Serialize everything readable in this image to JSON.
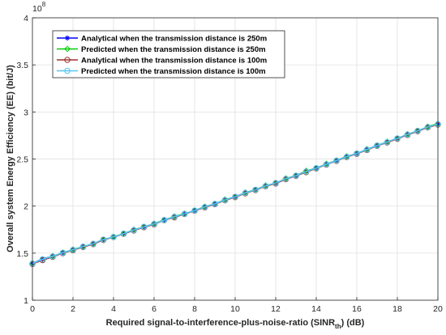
{
  "chart_data": {
    "type": "line",
    "xlabel_parts": [
      "Required signal-to-interference-plus-noise-ratio (SINR",
      "th",
      ") (dB)"
    ],
    "ylabel": "Overall system Energy Efficiency (EE) (bit/J)",
    "y_exponent_base": "10",
    "y_exponent_power": "8",
    "xlim": [
      0,
      20
    ],
    "ylim": [
      1,
      4
    ],
    "x_ticks": [
      "0",
      "2",
      "4",
      "6",
      "8",
      "10",
      "12",
      "14",
      "16",
      "18",
      "20"
    ],
    "y_ticks": [
      "1",
      "1.5",
      "2",
      "2.5",
      "3",
      "3.5",
      "4"
    ],
    "grid": true,
    "legend_position": "top-left",
    "x": [
      0,
      0.5,
      1,
      1.5,
      2,
      2.5,
      3,
      3.5,
      4,
      4.5,
      5,
      5.5,
      6,
      6.5,
      7,
      7.5,
      8,
      8.5,
      9,
      9.5,
      10,
      10.5,
      11,
      11.5,
      12,
      12.5,
      13,
      13.5,
      14,
      14.5,
      15,
      15.5,
      16,
      16.5,
      17,
      17.5,
      18,
      18.5,
      19,
      19.5,
      20
    ],
    "series": [
      {
        "name": "Analytical when the transmission distance is 250m",
        "color": "#0000ff",
        "marker": "asterisk",
        "values": [
          1.39,
          1.44,
          1.465,
          1.505,
          1.535,
          1.565,
          1.6,
          1.645,
          1.67,
          1.71,
          1.745,
          1.78,
          1.81,
          1.855,
          1.885,
          1.915,
          1.955,
          1.99,
          2.025,
          2.065,
          2.1,
          2.14,
          2.175,
          2.215,
          2.245,
          2.29,
          2.325,
          2.37,
          2.405,
          2.445,
          2.485,
          2.525,
          2.56,
          2.6,
          2.645,
          2.68,
          2.72,
          2.76,
          2.8,
          2.84,
          2.87
        ]
      },
      {
        "name": "Predicted when the transmission distance is 250m",
        "color": "#00cc00",
        "marker": "diamond",
        "values": [
          1.39,
          1.43,
          1.47,
          1.5,
          1.54,
          1.57,
          1.6,
          1.64,
          1.675,
          1.705,
          1.75,
          1.775,
          1.815,
          1.85,
          1.89,
          1.92,
          1.95,
          1.995,
          2.02,
          2.07,
          2.095,
          2.145,
          2.17,
          2.22,
          2.24,
          2.295,
          2.32,
          2.375,
          2.4,
          2.45,
          2.48,
          2.53,
          2.555,
          2.605,
          2.64,
          2.685,
          2.715,
          2.765,
          2.795,
          2.845,
          2.875
        ]
      },
      {
        "name": "Analytical when the transmission distance is 100m",
        "color": "#a0302a",
        "marker": "circle",
        "values": [
          1.385,
          1.425,
          1.46,
          1.5,
          1.53,
          1.565,
          1.595,
          1.64,
          1.67,
          1.705,
          1.74,
          1.775,
          1.805,
          1.85,
          1.88,
          1.915,
          1.95,
          1.985,
          2.02,
          2.06,
          2.095,
          2.135,
          2.17,
          2.21,
          2.24,
          2.285,
          2.32,
          2.36,
          2.4,
          2.44,
          2.48,
          2.52,
          2.555,
          2.595,
          2.64,
          2.675,
          2.715,
          2.755,
          2.795,
          2.835,
          2.865
        ]
      },
      {
        "name": "Predicted when the transmission distance is 100m",
        "color": "#55c6f5",
        "marker": "circle",
        "values": [
          1.39,
          1.435,
          1.465,
          1.505,
          1.535,
          1.57,
          1.6,
          1.645,
          1.672,
          1.708,
          1.745,
          1.78,
          1.81,
          1.852,
          1.886,
          1.918,
          1.953,
          1.99,
          2.024,
          2.064,
          2.1,
          2.14,
          2.174,
          2.214,
          2.246,
          2.29,
          2.324,
          2.366,
          2.404,
          2.444,
          2.484,
          2.524,
          2.56,
          2.6,
          2.644,
          2.68,
          2.72,
          2.76,
          2.8,
          2.84,
          2.87
        ]
      }
    ]
  }
}
